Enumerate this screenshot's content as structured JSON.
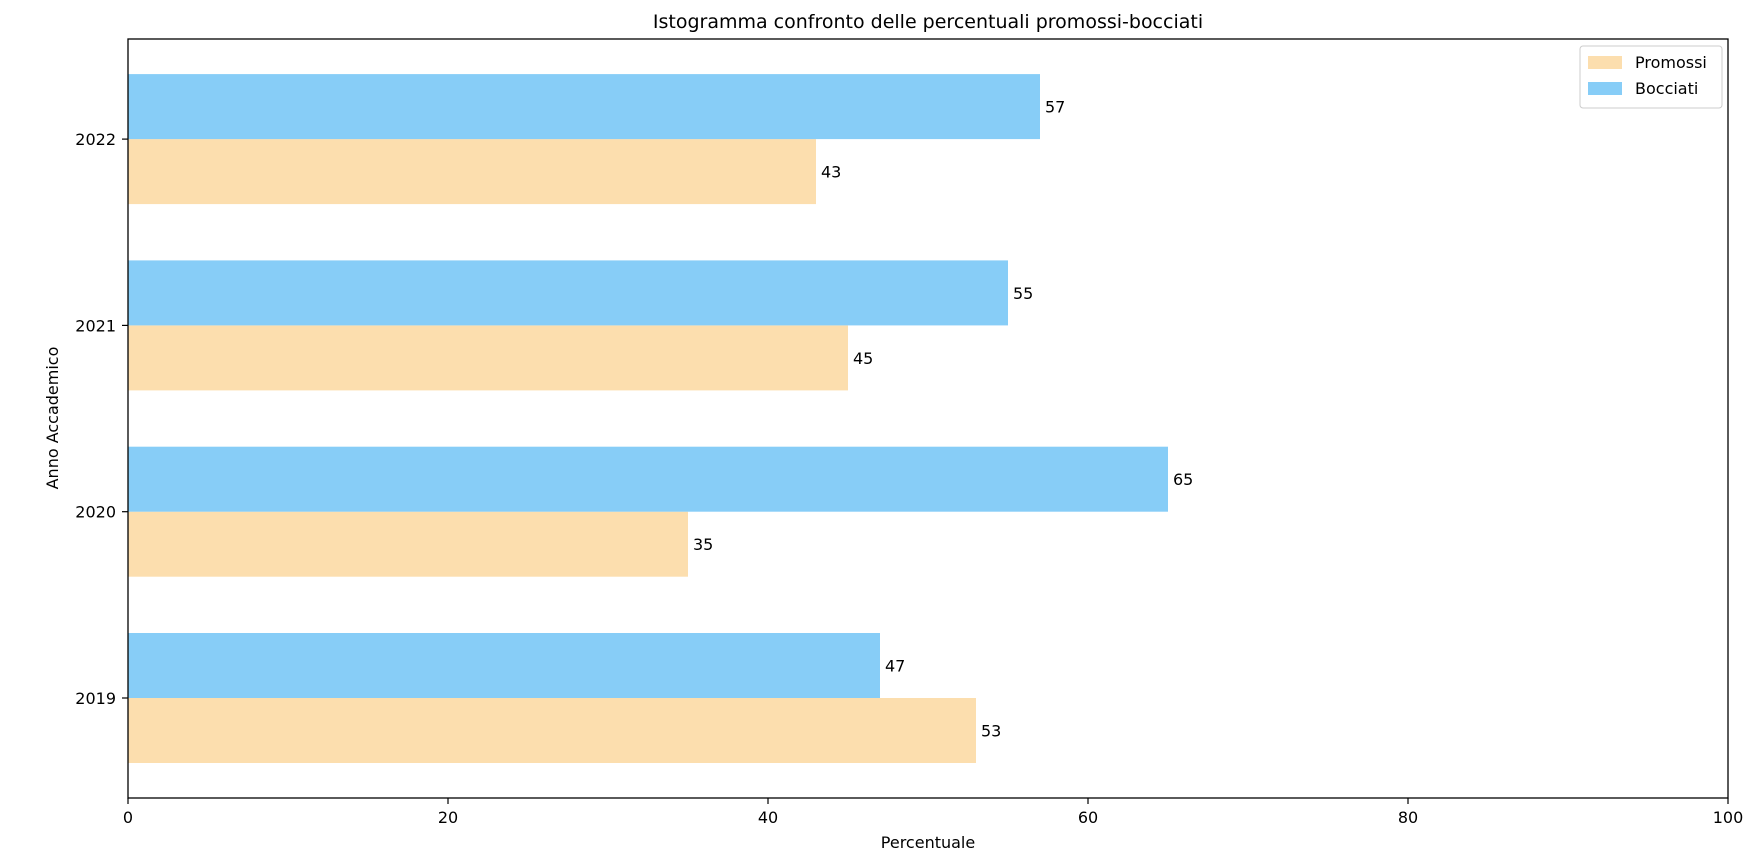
{
  "chart_data": {
    "type": "bar",
    "orientation": "horizontal",
    "title": "Istogramma confronto delle percentuali promossi-bocciati",
    "xlabel": "Percentuale",
    "ylabel": "Anno Accademico",
    "categories": [
      "2019",
      "2020",
      "2021",
      "2022"
    ],
    "series": [
      {
        "name": "Promossi",
        "values": [
          53,
          35,
          45,
          43
        ],
        "color": "#fcdeae"
      },
      {
        "name": "Bocciati",
        "values": [
          47,
          65,
          55,
          57
        ],
        "color": "#87cdf7"
      }
    ],
    "xlim": [
      0,
      100
    ],
    "xticks": [
      0,
      20,
      40,
      60,
      80,
      100
    ],
    "grid": false,
    "legend_position": "top-right"
  }
}
